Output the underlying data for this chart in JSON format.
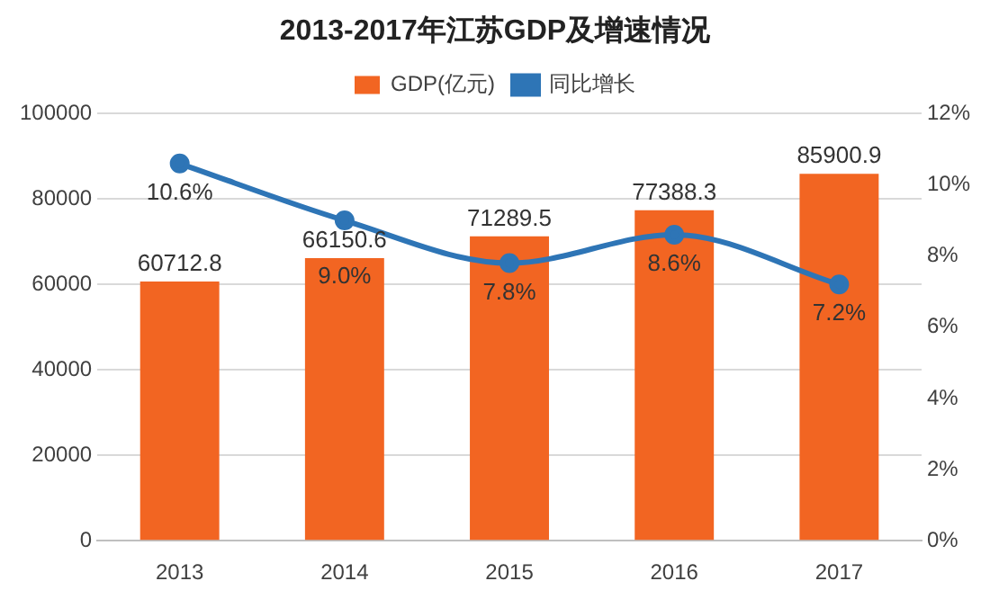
{
  "chart_data": {
    "type": "bar",
    "title": "2013-2017年江苏GDP及增速情况",
    "categories": [
      "2013",
      "2014",
      "2015",
      "2016",
      "2017"
    ],
    "series": [
      {
        "name": "GDP(亿元)",
        "color": "#f26522",
        "values": [
          60712.8,
          66150.6,
          71289.5,
          77388.3,
          85900.9
        ],
        "value_labels": [
          "60712.8",
          "66150.6",
          "71289.5",
          "77388.3",
          "85900.9"
        ]
      },
      {
        "name": "同比增长",
        "type": "line",
        "axis": "y2",
        "color": "#2e75b6",
        "values": [
          10.6,
          9.0,
          7.8,
          8.6,
          7.2
        ],
        "value_labels": [
          "10.6%",
          "9.0%",
          "7.8%",
          "8.6%",
          "7.2%"
        ]
      }
    ],
    "ylim": [
      0,
      100000
    ],
    "yticks": [
      0,
      20000,
      40000,
      60000,
      80000,
      100000
    ],
    "y2lim": [
      0,
      12
    ],
    "y2ticks": [
      {
        "value": 0,
        "label": "0%"
      },
      {
        "value": 2,
        "label": "2%"
      },
      {
        "value": 4,
        "label": "4%"
      },
      {
        "value": 6,
        "label": "6%"
      },
      {
        "value": 8,
        "label": "8%"
      },
      {
        "value": 10,
        "label": "10%"
      },
      {
        "value": 12,
        "label": "12%"
      }
    ],
    "grid": "y",
    "legend": "top",
    "marker": "circle"
  }
}
